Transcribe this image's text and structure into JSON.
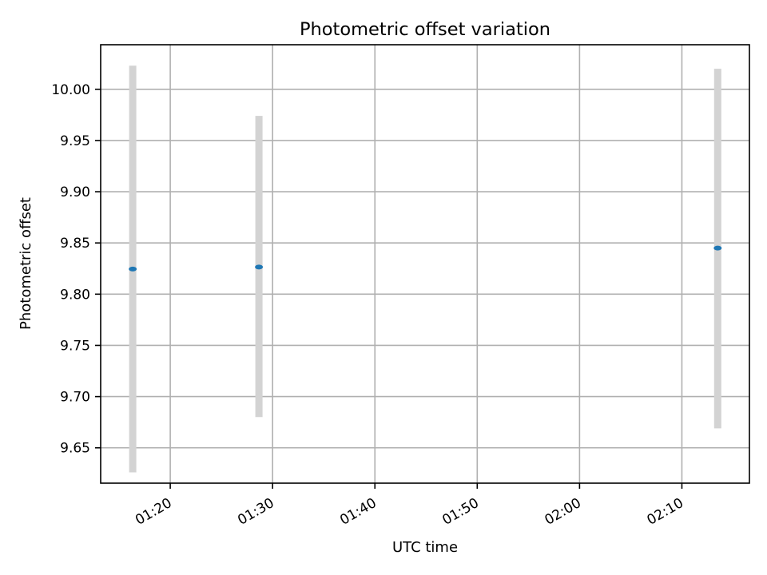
{
  "chart_data": {
    "type": "scatter",
    "title": "Photometric offset variation",
    "xlabel": "UTC time",
    "ylabel": "Photometric offset",
    "x_ticks": [
      "01:20",
      "01:30",
      "01:40",
      "01:50",
      "02:00",
      "02:10"
    ],
    "y_ticks": [
      "9.65",
      "9.70",
      "9.75",
      "9.80",
      "9.85",
      "9.90",
      "9.95",
      "10.00"
    ],
    "xlim": [
      "01:13:12",
      "02:16:36"
    ],
    "ylim": [
      9.6155,
      10.0435
    ],
    "grid": true,
    "errorbar_color": "#d3d3d3",
    "point_color": "#1f77b4",
    "points": [
      {
        "x": "01:16:20",
        "y": 9.8245,
        "yerr_low": 9.626,
        "yerr_high": 10.023
      },
      {
        "x": "01:28:40",
        "y": 9.8265,
        "yerr_low": 9.68,
        "yerr_high": 9.974
      },
      {
        "x": "02:13:30",
        "y": 9.845,
        "yerr_low": 9.669,
        "yerr_high": 10.02
      }
    ]
  }
}
